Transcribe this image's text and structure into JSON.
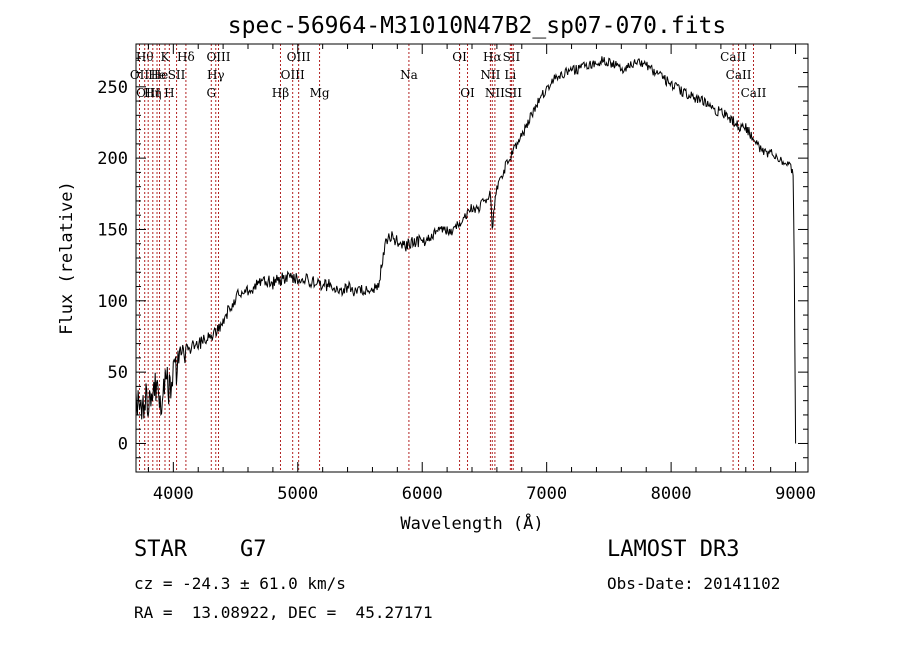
{
  "chart_data": {
    "type": "line",
    "title": "spec-56964-M31010N47B2_sp07-070.fits",
    "xlabel": "Wavelength (Å)",
    "ylabel": "Flux (relative)",
    "xlim": [
      3700,
      9100
    ],
    "ylim": [
      -20,
      280
    ],
    "xticks": [
      4000,
      5000,
      6000,
      7000,
      8000,
      9000
    ],
    "yticks": [
      0,
      50,
      100,
      150,
      200,
      250
    ],
    "x_tick_labels": [
      "4000",
      "5000",
      "6000",
      "7000",
      "8000",
      "9000"
    ],
    "y_tick_labels": [
      "0",
      "50",
      "100",
      "150",
      "200",
      "250"
    ],
    "grid": false,
    "line_color": "#000000",
    "marker_color": "#b22222",
    "series": [
      {
        "name": "flux",
        "x": [
          3700,
          3740,
          3780,
          3820,
          3860,
          3900,
          3940,
          3980,
          4000,
          4050,
          4100,
          4150,
          4200,
          4250,
          4300,
          4350,
          4400,
          4450,
          4500,
          4550,
          4600,
          4650,
          4700,
          4750,
          4800,
          4850,
          4900,
          4950,
          5000,
          5050,
          5100,
          5150,
          5200,
          5250,
          5300,
          5350,
          5400,
          5450,
          5500,
          5550,
          5600,
          5650,
          5700,
          5750,
          5800,
          5850,
          5900,
          5950,
          6000,
          6050,
          6100,
          6150,
          6200,
          6250,
          6300,
          6350,
          6400,
          6450,
          6500,
          6550,
          6562,
          6600,
          6650,
          6700,
          6750,
          6800,
          6850,
          6900,
          6950,
          7000,
          7050,
          7100,
          7150,
          7200,
          7250,
          7300,
          7350,
          7400,
          7450,
          7500,
          7550,
          7600,
          7650,
          7700,
          7750,
          7800,
          7850,
          7900,
          7950,
          8000,
          8050,
          8100,
          8150,
          8200,
          8250,
          8300,
          8350,
          8400,
          8450,
          8500,
          8550,
          8600,
          8650,
          8700,
          8750,
          8800,
          8850,
          8900,
          8950,
          8980,
          8990,
          9000
        ],
        "y": [
          30,
          20,
          35,
          25,
          40,
          30,
          45,
          35,
          50,
          55,
          65,
          68,
          70,
          72,
          75,
          80,
          85,
          95,
          102,
          106,
          108,
          110,
          112,
          114,
          112,
          115,
          116,
          117,
          115,
          116,
          114,
          112,
          110,
          112,
          110,
          108,
          110,
          106,
          108,
          106,
          107,
          110,
          140,
          145,
          142,
          138,
          140,
          142,
          141,
          143,
          148,
          150,
          150,
          148,
          155,
          160,
          165,
          165,
          170,
          175,
          150,
          180,
          190,
          200,
          208,
          215,
          225,
          235,
          242,
          248,
          254,
          258,
          260,
          262,
          262,
          265,
          266,
          267,
          268,
          267,
          266,
          262,
          264,
          266,
          268,
          266,
          262,
          258,
          255,
          252,
          250,
          246,
          244,
          242,
          240,
          238,
          234,
          232,
          230,
          226,
          222,
          222,
          215,
          208,
          203,
          204,
          201,
          198,
          195,
          190,
          120,
          0
        ]
      }
    ],
    "line_markers": [
      {
        "x": 3728,
        "label": "OII",
        "row": 1
      },
      {
        "x": 3770,
        "label": "Hθ",
        "row": 0
      },
      {
        "x": 3798,
        "label": "OIII",
        "row": 2
      },
      {
        "x": 3835,
        "label": "Hη",
        "row": 2
      },
      {
        "x": 3869,
        "label": "He",
        "row": 1
      },
      {
        "x": 3889,
        "label": "He",
        "row": 1
      },
      {
        "x": 3933,
        "label": "K",
        "row": 0
      },
      {
        "x": 3968,
        "label": "H",
        "row": 2
      },
      {
        "x": 4026,
        "label": "SII",
        "row": 1
      },
      {
        "x": 4101,
        "label": "Hδ",
        "row": 0
      },
      {
        "x": 4305,
        "label": "G",
        "row": 2
      },
      {
        "x": 4341,
        "label": "Hγ",
        "row": 1
      },
      {
        "x": 4363,
        "label": "OIII",
        "row": 0
      },
      {
        "x": 4861,
        "label": "Hβ",
        "row": 2
      },
      {
        "x": 4959,
        "label": "OIII",
        "row": 1
      },
      {
        "x": 5007,
        "label": "OIII",
        "row": 0
      },
      {
        "x": 5175,
        "label": "Mg",
        "row": 2
      },
      {
        "x": 5893,
        "label": "Na",
        "row": 1
      },
      {
        "x": 6300,
        "label": "OI",
        "row": 0
      },
      {
        "x": 6364,
        "label": "OI",
        "row": 2
      },
      {
        "x": 6548,
        "label": "NII",
        "row": 1
      },
      {
        "x": 6563,
        "label": "Hα",
        "row": 0
      },
      {
        "x": 6584,
        "label": "NII",
        "row": 2
      },
      {
        "x": 6708,
        "label": "Li",
        "row": 1
      },
      {
        "x": 6717,
        "label": "SII",
        "row": 0
      },
      {
        "x": 6731,
        "label": "SII",
        "row": 2
      },
      {
        "x": 8498,
        "label": "CaII",
        "row": 0
      },
      {
        "x": 8542,
        "label": "CaII",
        "row": 1
      },
      {
        "x": 8662,
        "label": "CaII",
        "row": 2
      }
    ]
  },
  "info": {
    "class_line": "STAR    G7",
    "survey": "LAMOST DR3",
    "cz": "cz = -24.3 ± 61.0 km/s",
    "obs_date": "Obs-Date: 20141102",
    "coords": "RA =  13.08922, DEC =  45.27171"
  }
}
